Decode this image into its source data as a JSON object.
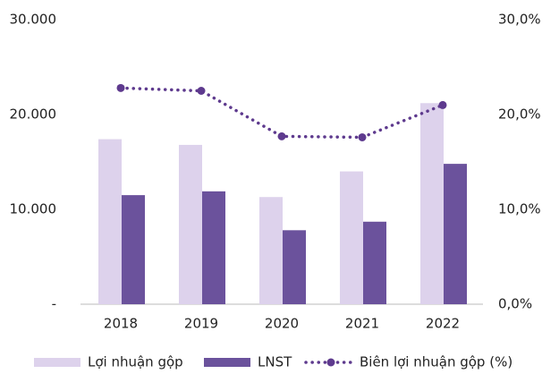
{
  "chart_data": {
    "type": "bar",
    "categories": [
      "2018",
      "2019",
      "2020",
      "2021",
      "2022"
    ],
    "series": [
      {
        "name": "Lợi nhuận gộp",
        "type": "bar",
        "color": "#ddd2ec",
        "values": [
          17400,
          16800,
          11300,
          14000,
          21200
        ]
      },
      {
        "name": "LNST",
        "type": "bar",
        "color": "#6b529c",
        "values": [
          11500,
          11900,
          7800,
          8700,
          14800
        ]
      },
      {
        "name": "Biên lợi nhuận gộp (%)",
        "type": "line",
        "axis": "y2",
        "color": "#5e3a8e",
        "values": [
          22.8,
          22.5,
          17.7,
          17.6,
          21.0
        ]
      }
    ],
    "ylim": [
      0,
      30000
    ],
    "yticks": [
      {
        "value": 0,
        "label": "-"
      },
      {
        "value": 10000,
        "label": "10.000"
      },
      {
        "value": 20000,
        "label": "20.000"
      },
      {
        "value": 30000,
        "label": "30.000"
      }
    ],
    "y2lim": [
      0,
      30
    ],
    "y2ticks": [
      {
        "value": 0,
        "label": "0,0%"
      },
      {
        "value": 10,
        "label": "10,0%"
      },
      {
        "value": 20,
        "label": "20,0%"
      },
      {
        "value": 30,
        "label": "30,0%"
      }
    ],
    "legend": "bottom",
    "grid": false
  }
}
